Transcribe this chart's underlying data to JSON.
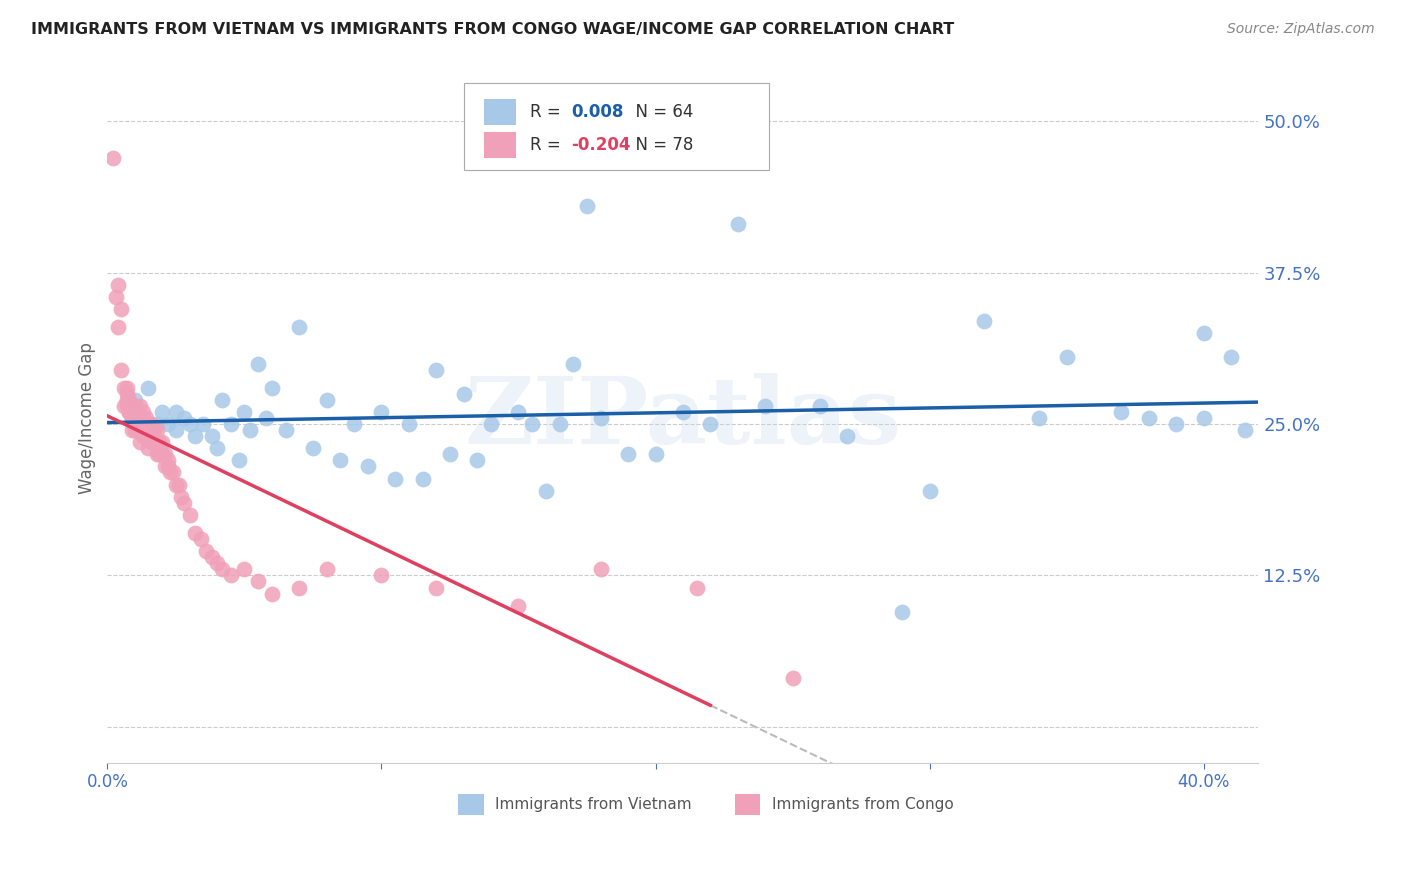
{
  "title": "IMMIGRANTS FROM VIETNAM VS IMMIGRANTS FROM CONGO WAGE/INCOME GAP CORRELATION CHART",
  "source": "Source: ZipAtlas.com",
  "ylabel": "Wage/Income Gap",
  "right_yticks": [
    0.0,
    0.125,
    0.25,
    0.375,
    0.5
  ],
  "right_yticklabels": [
    "",
    "12.5%",
    "25.0%",
    "37.5%",
    "50.0%"
  ],
  "xlim": [
    0.0,
    0.42
  ],
  "ylim": [
    -0.03,
    0.54
  ],
  "r_vietnam": 0.008,
  "n_vietnam": 64,
  "r_congo": -0.204,
  "n_congo": 78,
  "vietnam_color": "#a8c8e8",
  "congo_color": "#f0a0b8",
  "trendline_vietnam_color": "#1a5fa8",
  "trendline_congo_color": "#e04060",
  "trendline_extrap_color": "#bbbbbb",
  "background_color": "#ffffff",
  "grid_color": "#cccccc",
  "axis_color": "#4472c4",
  "watermark": "ZIPatlas",
  "vietnam_scatter_x": [
    0.01,
    0.015,
    0.018,
    0.02,
    0.022,
    0.025,
    0.025,
    0.028,
    0.03,
    0.032,
    0.035,
    0.038,
    0.04,
    0.042,
    0.045,
    0.048,
    0.05,
    0.052,
    0.055,
    0.058,
    0.06,
    0.065,
    0.07,
    0.075,
    0.08,
    0.085,
    0.09,
    0.095,
    0.1,
    0.105,
    0.11,
    0.115,
    0.12,
    0.125,
    0.13,
    0.135,
    0.14,
    0.15,
    0.155,
    0.16,
    0.165,
    0.17,
    0.175,
    0.18,
    0.19,
    0.2,
    0.21,
    0.22,
    0.23,
    0.24,
    0.26,
    0.27,
    0.29,
    0.3,
    0.32,
    0.34,
    0.35,
    0.37,
    0.38,
    0.39,
    0.4,
    0.4,
    0.41,
    0.415
  ],
  "vietnam_scatter_y": [
    0.27,
    0.28,
    0.25,
    0.26,
    0.25,
    0.26,
    0.245,
    0.255,
    0.25,
    0.24,
    0.25,
    0.24,
    0.23,
    0.27,
    0.25,
    0.22,
    0.26,
    0.245,
    0.3,
    0.255,
    0.28,
    0.245,
    0.33,
    0.23,
    0.27,
    0.22,
    0.25,
    0.215,
    0.26,
    0.205,
    0.25,
    0.205,
    0.295,
    0.225,
    0.275,
    0.22,
    0.25,
    0.26,
    0.25,
    0.195,
    0.25,
    0.3,
    0.43,
    0.255,
    0.225,
    0.225,
    0.26,
    0.25,
    0.415,
    0.265,
    0.265,
    0.24,
    0.095,
    0.195,
    0.335,
    0.255,
    0.305,
    0.26,
    0.255,
    0.25,
    0.255,
    0.325,
    0.305,
    0.245
  ],
  "congo_scatter_x": [
    0.002,
    0.003,
    0.004,
    0.004,
    0.005,
    0.005,
    0.006,
    0.006,
    0.007,
    0.007,
    0.007,
    0.007,
    0.008,
    0.008,
    0.008,
    0.009,
    0.009,
    0.009,
    0.01,
    0.01,
    0.01,
    0.01,
    0.011,
    0.011,
    0.011,
    0.012,
    0.012,
    0.012,
    0.012,
    0.013,
    0.013,
    0.013,
    0.014,
    0.014,
    0.015,
    0.015,
    0.015,
    0.016,
    0.016,
    0.016,
    0.017,
    0.017,
    0.018,
    0.018,
    0.018,
    0.019,
    0.019,
    0.02,
    0.02,
    0.021,
    0.021,
    0.022,
    0.022,
    0.023,
    0.024,
    0.025,
    0.026,
    0.027,
    0.028,
    0.03,
    0.032,
    0.034,
    0.036,
    0.038,
    0.04,
    0.042,
    0.045,
    0.05,
    0.055,
    0.06,
    0.07,
    0.08,
    0.1,
    0.12,
    0.15,
    0.18,
    0.215,
    0.25
  ],
  "congo_scatter_y": [
    0.47,
    0.355,
    0.365,
    0.33,
    0.345,
    0.295,
    0.28,
    0.265,
    0.275,
    0.265,
    0.28,
    0.27,
    0.27,
    0.26,
    0.26,
    0.255,
    0.255,
    0.245,
    0.265,
    0.255,
    0.255,
    0.245,
    0.26,
    0.255,
    0.245,
    0.265,
    0.255,
    0.245,
    0.235,
    0.26,
    0.25,
    0.24,
    0.255,
    0.245,
    0.25,
    0.24,
    0.23,
    0.25,
    0.245,
    0.235,
    0.245,
    0.235,
    0.245,
    0.235,
    0.225,
    0.235,
    0.225,
    0.235,
    0.225,
    0.225,
    0.215,
    0.22,
    0.215,
    0.21,
    0.21,
    0.2,
    0.2,
    0.19,
    0.185,
    0.175,
    0.16,
    0.155,
    0.145,
    0.14,
    0.135,
    0.13,
    0.125,
    0.13,
    0.12,
    0.11,
    0.115,
    0.13,
    0.125,
    0.115,
    0.1,
    0.13,
    0.115,
    0.04
  ],
  "congo_trendline_solid_end": 0.22,
  "vietnam_trendline_y_intercept": 0.252,
  "vietnam_trendline_slope": 0.0,
  "congo_trendline_y_intercept": 0.27,
  "congo_trendline_slope": -0.72
}
